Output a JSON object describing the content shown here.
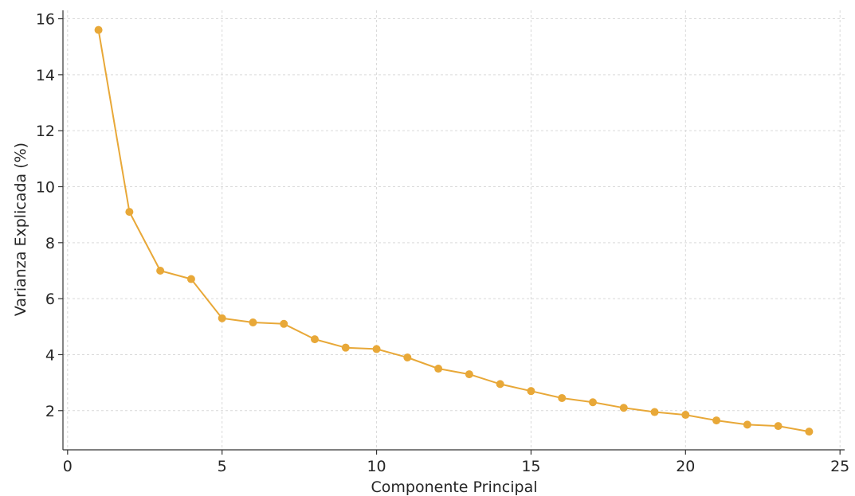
{
  "chart_data": {
    "type": "line",
    "title": "",
    "xlabel": "Componente Principal",
    "ylabel": "Varianza Explicada (%)",
    "xlim": [
      -0.15,
      25.15
    ],
    "ylim": [
      0.6,
      16.3
    ],
    "xticks": [
      0,
      5,
      10,
      15,
      20,
      25
    ],
    "yticks": [
      2,
      4,
      6,
      8,
      10,
      12,
      14,
      16
    ],
    "grid": true,
    "legend": "none",
    "series": [
      {
        "color": "#e8a838",
        "marker": "circle",
        "x": [
          1,
          2,
          3,
          4,
          5,
          6,
          7,
          8,
          9,
          10,
          11,
          12,
          13,
          14,
          15,
          16,
          17,
          18,
          19,
          20,
          21,
          22,
          23,
          24
        ],
        "y": [
          15.6,
          9.1,
          7.0,
          6.7,
          5.3,
          5.15,
          5.1,
          4.55,
          4.25,
          4.2,
          3.9,
          3.5,
          3.3,
          2.95,
          2.7,
          2.45,
          2.3,
          2.1,
          1.95,
          1.85,
          1.65,
          1.5,
          1.45,
          1.25
        ]
      }
    ]
  }
}
